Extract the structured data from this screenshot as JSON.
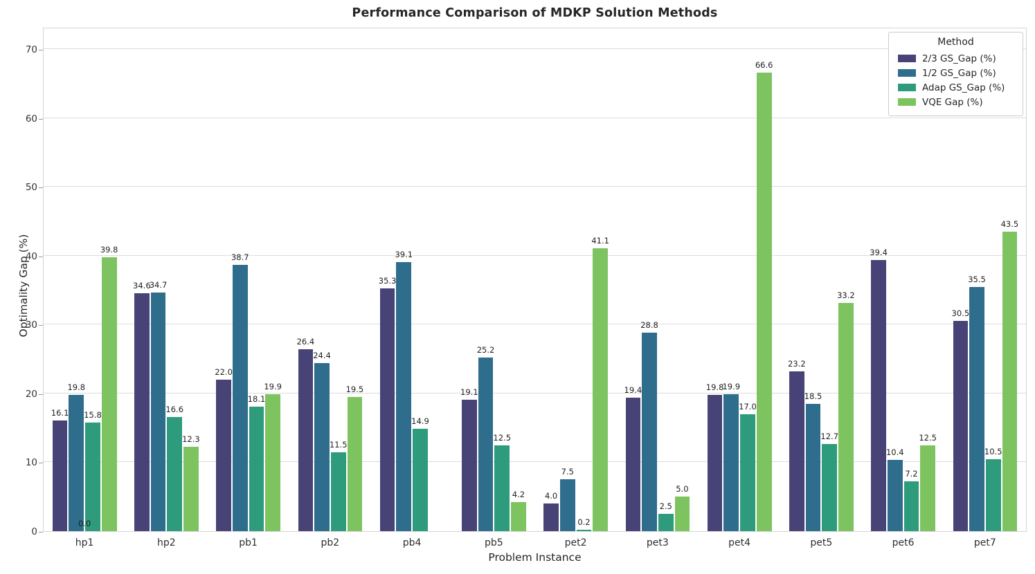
{
  "chart_data": {
    "type": "bar",
    "title": "Performance Comparison of MDKP Solution Methods",
    "xlabel": "Problem Instance",
    "ylabel": "Optimality Gap (%)",
    "legend_title": "Method",
    "legend_position": "upper right",
    "grid": "horizontal",
    "bar_labels_format": "one_decimal",
    "categories": [
      "hp1",
      "hp2",
      "pb1",
      "pb2",
      "pb4",
      "pb5",
      "pet2",
      "pet3",
      "pet4",
      "pet5",
      "pet6",
      "pet7"
    ],
    "series": [
      {
        "name": "2/3 GS_Gap (%)",
        "color": "#484376",
        "values": [
          16.1,
          34.6,
          22.0,
          26.4,
          35.3,
          19.1,
          4.0,
          19.4,
          19.8,
          23.2,
          39.4,
          30.5
        ]
      },
      {
        "name": "1/2 GS_Gap (%)",
        "color": "#2f6d8d",
        "values": [
          19.8,
          34.7,
          38.7,
          24.4,
          39.1,
          25.2,
          7.5,
          28.8,
          19.9,
          18.5,
          10.4,
          35.5
        ]
      },
      {
        "name": "Adap GS_Gap (%)",
        "color": "#2f9b7d",
        "values": [
          15.8,
          16.6,
          18.1,
          11.5,
          14.9,
          12.5,
          0.2,
          2.5,
          17.0,
          12.7,
          7.2,
          10.5
        ]
      },
      {
        "name": "VQE Gap (%)",
        "color": "#7dc461",
        "values": [
          39.8,
          12.3,
          19.9,
          19.5,
          null,
          4.2,
          41.1,
          5.0,
          66.6,
          33.2,
          12.5,
          43.5
        ]
      }
    ],
    "yticks": [
      0,
      10,
      20,
      30,
      40,
      50,
      60,
      70
    ],
    "ylim": [
      0,
      73.25
    ],
    "annotations": [
      {
        "category": "hp1",
        "text": "0.0"
      }
    ],
    "colors": {
      "gridline": "#dcdcdc",
      "spine": "#d4d4d4",
      "text": "#262626"
    }
  }
}
